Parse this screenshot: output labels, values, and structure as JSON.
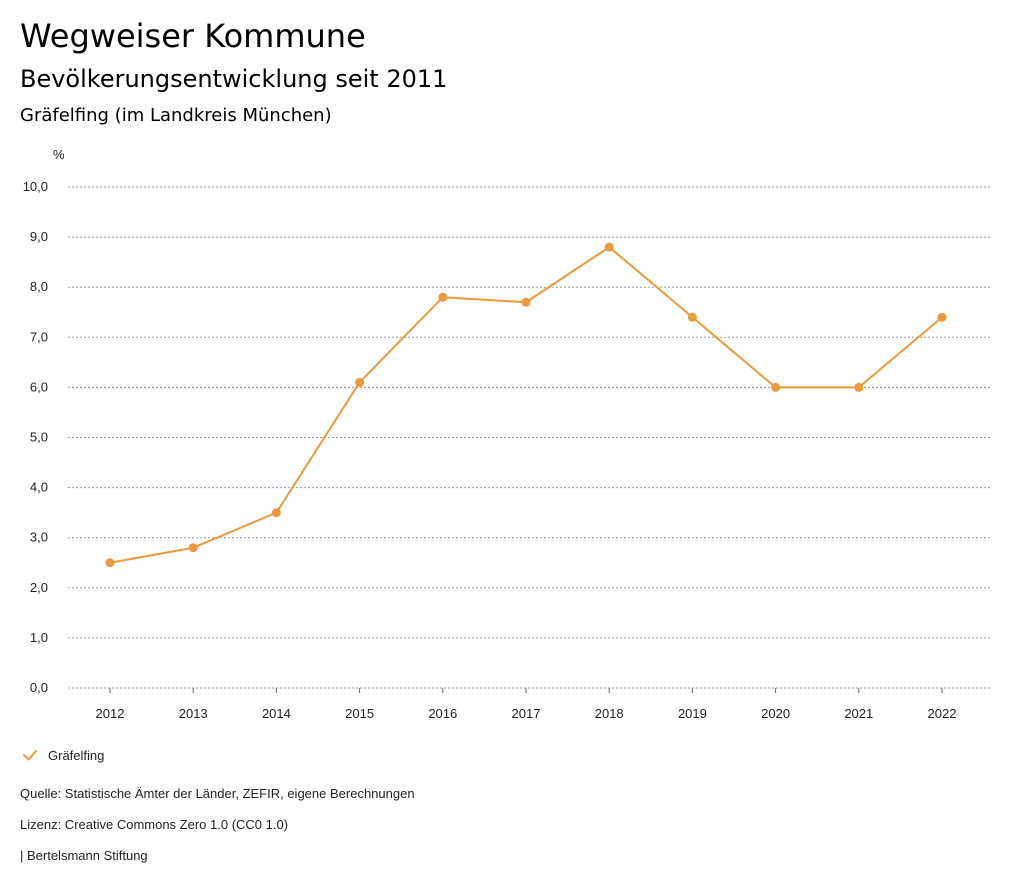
{
  "header": {
    "title": "Wegweiser Kommune",
    "subtitle": "Bevölkerungsentwicklung seit 2011",
    "region": "Gräfelfing (im Landkreis München)"
  },
  "footer": {
    "source": "Quelle: Statistische Ämter der Länder, ZEFIR, eigene Berechnungen",
    "license": "Lizenz: Creative Commons Zero 1.0 (CC0 1.0)",
    "publisher": "| Bertelsmann Stiftung"
  },
  "colors": {
    "series": "#EA9A3A"
  },
  "chart_data": {
    "type": "line",
    "unit": "%",
    "x": [
      "2012",
      "2013",
      "2014",
      "2015",
      "2016",
      "2017",
      "2018",
      "2019",
      "2020",
      "2021",
      "2022"
    ],
    "y_ticks": [
      "0,0",
      "1,0",
      "2,0",
      "3,0",
      "4,0",
      "5,0",
      "6,0",
      "7,0",
      "8,0",
      "9,0",
      "10,0"
    ],
    "ylim": [
      0,
      10
    ],
    "grid": true,
    "legend_position": "bottom-left",
    "series": [
      {
        "name": "Gräfelfing",
        "values": [
          2.5,
          2.8,
          3.5,
          6.1,
          7.8,
          7.7,
          8.8,
          7.4,
          6.0,
          6.0,
          7.4
        ]
      }
    ]
  }
}
